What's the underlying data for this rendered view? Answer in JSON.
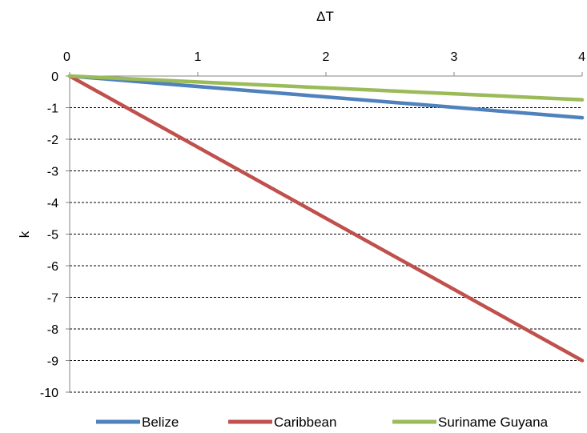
{
  "chart_data": {
    "type": "line",
    "xlabel": "ΔT",
    "ylabel": "k",
    "xlim": [
      0,
      4
    ],
    "ylim": [
      -10,
      0
    ],
    "x_ticks": [
      0,
      1,
      2,
      3,
      4
    ],
    "y_ticks": [
      0,
      -1,
      -2,
      -3,
      -4,
      -5,
      -6,
      -7,
      -8,
      -9,
      -10
    ],
    "x_axis_position": "top",
    "grid": "horizontal dashed",
    "legend_position": "bottom",
    "x": [
      0,
      4
    ],
    "series": [
      {
        "name": "Belize",
        "color": "#4f81bd",
        "values": [
          0,
          -1.32
        ]
      },
      {
        "name": "Caribbean",
        "color": "#c0504d",
        "values": [
          0,
          -9.0
        ]
      },
      {
        "name": "Suriname Guyana",
        "color": "#9bbb59",
        "values": [
          0,
          -0.75
        ]
      }
    ]
  }
}
